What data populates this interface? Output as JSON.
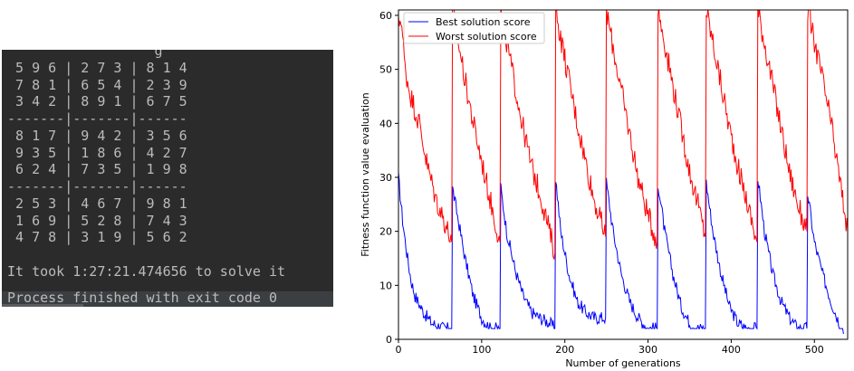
{
  "console": {
    "output_lines": [
      "                  g",
      " 5 9 6 | 2 7 3 | 8 1 4",
      " 7 8 1 | 6 5 4 | 2 3 9",
      " 3 4 2 | 8 9 1 | 6 7 5",
      "-------|-------|------",
      " 8 1 7 | 9 4 2 | 3 5 6",
      " 9 3 5 | 1 8 6 | 4 2 7",
      " 6 2 4 | 7 3 5 | 1 9 8",
      "-------|-------|------",
      " 2 5 3 | 4 6 7 | 9 8 1",
      " 1 6 9 | 5 2 8 | 7 4 3",
      " 4 7 8 | 3 1 9 | 5 6 2",
      "",
      "It took 1:27:21.474656 to solve it",
      ""
    ],
    "exit_message": "Process finished with exit code 0"
  },
  "chart_data": {
    "type": "line",
    "xlabel": "Number of generations",
    "ylabel": "Fitness function value evaluation",
    "xlim": [
      0,
      540
    ],
    "ylim": [
      0,
      61
    ],
    "xticks": [
      0,
      100,
      200,
      300,
      400,
      500
    ],
    "yticks": [
      0,
      10,
      20,
      30,
      40,
      50,
      60
    ],
    "legend_position": "top-left",
    "restarts": [
      0,
      65,
      123,
      189,
      250,
      312,
      370,
      432,
      492
    ],
    "series": [
      {
        "name": "Best solution score",
        "color": "#0000ff",
        "keypoints": [
          [
            0,
            30
          ],
          [
            5,
            22
          ],
          [
            10,
            16
          ],
          [
            15,
            11
          ],
          [
            20,
            8
          ],
          [
            30,
            5
          ],
          [
            40,
            3
          ],
          [
            55,
            2
          ],
          [
            64,
            2
          ],
          [
            65,
            28
          ],
          [
            72,
            22
          ],
          [
            80,
            15
          ],
          [
            90,
            8
          ],
          [
            100,
            4
          ],
          [
            110,
            2
          ],
          [
            122,
            2
          ],
          [
            123,
            28
          ],
          [
            130,
            20
          ],
          [
            140,
            13
          ],
          [
            150,
            8
          ],
          [
            160,
            5
          ],
          [
            170,
            4
          ],
          [
            182,
            3
          ],
          [
            188,
            2
          ],
          [
            189,
            30
          ],
          [
            195,
            20
          ],
          [
            205,
            12
          ],
          [
            215,
            7
          ],
          [
            225,
            5
          ],
          [
            235,
            4
          ],
          [
            249,
            4
          ],
          [
            250,
            29
          ],
          [
            258,
            20
          ],
          [
            268,
            12
          ],
          [
            278,
            7
          ],
          [
            288,
            4
          ],
          [
            300,
            2
          ],
          [
            311,
            2
          ],
          [
            312,
            29
          ],
          [
            320,
            20
          ],
          [
            330,
            12
          ],
          [
            340,
            6
          ],
          [
            350,
            3
          ],
          [
            360,
            2
          ],
          [
            369,
            2
          ],
          [
            370,
            29
          ],
          [
            378,
            20
          ],
          [
            388,
            12
          ],
          [
            398,
            6
          ],
          [
            408,
            3
          ],
          [
            418,
            2
          ],
          [
            431,
            2
          ],
          [
            432,
            30
          ],
          [
            440,
            20
          ],
          [
            450,
            12
          ],
          [
            460,
            7
          ],
          [
            470,
            4
          ],
          [
            480,
            2
          ],
          [
            491,
            2
          ],
          [
            492,
            27
          ],
          [
            500,
            18
          ],
          [
            510,
            12
          ],
          [
            520,
            7
          ],
          [
            530,
            3
          ],
          [
            535,
            1
          ]
        ]
      },
      {
        "name": "Worst solution score",
        "color": "#ff0000",
        "keypoints": [
          [
            0,
            58
          ],
          [
            3,
            60
          ],
          [
            8,
            50
          ],
          [
            15,
            45
          ],
          [
            25,
            40
          ],
          [
            35,
            32
          ],
          [
            45,
            26
          ],
          [
            55,
            22
          ],
          [
            64,
            18
          ],
          [
            65,
            61
          ],
          [
            72,
            55
          ],
          [
            80,
            48
          ],
          [
            90,
            40
          ],
          [
            100,
            33
          ],
          [
            110,
            26
          ],
          [
            122,
            18
          ],
          [
            123,
            61
          ],
          [
            130,
            55
          ],
          [
            140,
            47
          ],
          [
            150,
            39
          ],
          [
            160,
            32
          ],
          [
            170,
            27
          ],
          [
            180,
            21
          ],
          [
            188,
            16
          ],
          [
            189,
            61
          ],
          [
            195,
            56
          ],
          [
            205,
            48
          ],
          [
            215,
            40
          ],
          [
            225,
            33
          ],
          [
            235,
            26
          ],
          [
            249,
            19
          ],
          [
            250,
            61
          ],
          [
            258,
            54
          ],
          [
            268,
            46
          ],
          [
            278,
            38
          ],
          [
            288,
            30
          ],
          [
            300,
            23
          ],
          [
            311,
            18
          ],
          [
            312,
            61
          ],
          [
            320,
            55
          ],
          [
            330,
            47
          ],
          [
            340,
            39
          ],
          [
            350,
            31
          ],
          [
            360,
            25
          ],
          [
            369,
            19
          ],
          [
            370,
            61
          ],
          [
            378,
            55
          ],
          [
            388,
            47
          ],
          [
            398,
            39
          ],
          [
            408,
            32
          ],
          [
            418,
            26
          ],
          [
            431,
            18
          ],
          [
            432,
            61
          ],
          [
            440,
            55
          ],
          [
            450,
            47
          ],
          [
            460,
            39
          ],
          [
            470,
            31
          ],
          [
            480,
            25
          ],
          [
            491,
            20
          ],
          [
            492,
            61
          ],
          [
            500,
            55
          ],
          [
            510,
            48
          ],
          [
            520,
            40
          ],
          [
            530,
            30
          ],
          [
            540,
            20
          ]
        ]
      }
    ]
  }
}
